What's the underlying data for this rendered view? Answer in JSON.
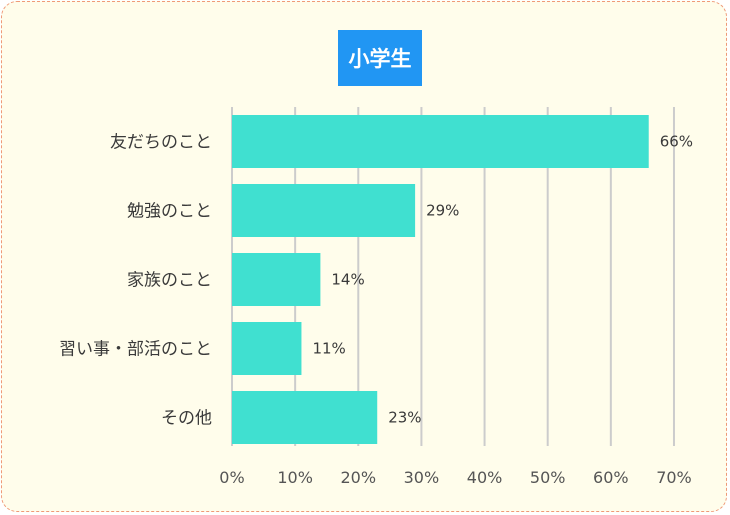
{
  "chart_data": {
    "type": "bar",
    "orientation": "horizontal",
    "title": "小学生",
    "categories": [
      "友だちのこと",
      "勉強のこと",
      "家族のこと",
      "習い事・部活のこと",
      "その他"
    ],
    "values": [
      66,
      29,
      14,
      11,
      23
    ],
    "value_labels": [
      "66%",
      "29%",
      "14%",
      "11%",
      "23%"
    ],
    "xlim": [
      0,
      70
    ],
    "x_ticks": [
      0,
      10,
      20,
      30,
      40,
      50,
      60,
      70
    ],
    "x_tick_labels": [
      "0%",
      "10%",
      "20%",
      "30%",
      "40%",
      "50%",
      "60%",
      "70%"
    ],
    "xlabel": "",
    "ylabel": "",
    "grid": true,
    "legend": "none",
    "bar_color": "#40e0d0",
    "title_bg_color": "#2196f3",
    "background_color": "#fffdeb",
    "border_color": "#ef9a78",
    "grid_color": "#cccccc"
  }
}
